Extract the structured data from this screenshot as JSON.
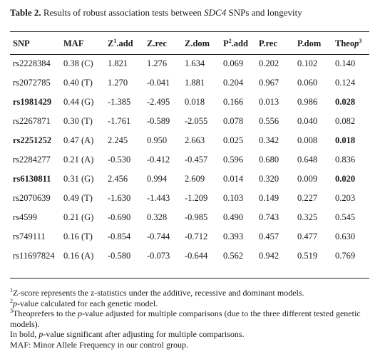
{
  "caption": {
    "label": "Table 2.",
    "text_before": " Results of robust association tests between ",
    "gene": "SDC4",
    "text_after": " SNPs and longevity"
  },
  "table": {
    "headers": {
      "snp": "SNP",
      "maf": "MAF",
      "z_add_main": "Z",
      "z_add_sup": "1",
      "z_add_rest": ".add",
      "z_rec": "Z.rec",
      "z_dom": "Z.dom",
      "p_add_main": "P",
      "p_add_sup": "2",
      "p_add_rest": ".add",
      "p_rec": "P.rec",
      "p_dom": "P.dom",
      "theo_main": "Theo",
      "theo_it": "p",
      "theo_sup": "3"
    },
    "rows": [
      {
        "snp": "rs2228384",
        "maf": "0.38 (C)",
        "z_add": "1.821",
        "z_rec": "1.276",
        "z_dom": "1.634",
        "p_add": "0.069",
        "p_rec": "0.202",
        "p_dom": "0.102",
        "theop": "0.140",
        "bold": false
      },
      {
        "snp": "rs2072785",
        "maf": "0.40 (T)",
        "z_add": "1.270",
        "z_rec": "-0.041",
        "z_dom": "1.881",
        "p_add": "0.204",
        "p_rec": "0.967",
        "p_dom": "0.060",
        "theop": "0.124",
        "bold": false
      },
      {
        "snp": "rs1981429",
        "maf": "0.44 (G)",
        "z_add": "-1.385",
        "z_rec": "-2.495",
        "z_dom": "0.018",
        "p_add": "0.166",
        "p_rec": "0.013",
        "p_dom": "0.986",
        "theop": "0.028",
        "bold": true
      },
      {
        "snp": "rs2267871",
        "maf": "0.30 (T)",
        "z_add": "-1.761",
        "z_rec": "-0.589",
        "z_dom": "-2.055",
        "p_add": "0.078",
        "p_rec": "0.556",
        "p_dom": "0.040",
        "theop": "0.082",
        "bold": false
      },
      {
        "snp": "rs2251252",
        "maf": "0.47 (A)",
        "z_add": "2.245",
        "z_rec": "0.950",
        "z_dom": "2.663",
        "p_add": "0.025",
        "p_rec": "0.342",
        "p_dom": "0.008",
        "theop": "0.018",
        "bold": true
      },
      {
        "snp": "rs2284277",
        "maf": "0.21 (A)",
        "z_add": "-0.530",
        "z_rec": "-0.412",
        "z_dom": "-0.457",
        "p_add": "0.596",
        "p_rec": "0.680",
        "p_dom": "0.648",
        "theop": "0.836",
        "bold": false
      },
      {
        "snp": "rs6130811",
        "maf": "0.31 (G)",
        "z_add": "2.456",
        "z_rec": "0.994",
        "z_dom": "2.609",
        "p_add": "0.014",
        "p_rec": "0.320",
        "p_dom": "0.009",
        "theop": "0.020",
        "bold": true
      },
      {
        "snp": "rs2070639",
        "maf": "0.49 (T)",
        "z_add": "-1.630",
        "z_rec": "-1.443",
        "z_dom": "-1.209",
        "p_add": "0.103",
        "p_rec": "0.149",
        "p_dom": "0.227",
        "theop": "0.203",
        "bold": false
      },
      {
        "snp": "rs4599",
        "maf": "0.21 (G)",
        "z_add": "-0.690",
        "z_rec": "0.328",
        "z_dom": "-0.985",
        "p_add": "0.490",
        "p_rec": "0.743",
        "p_dom": "0.325",
        "theop": "0.545",
        "bold": false
      },
      {
        "snp": "rs749111",
        "maf": "0.16 (T)",
        "z_add": "-0.854",
        "z_rec": "-0.744",
        "z_dom": "-0.712",
        "p_add": "0.393",
        "p_rec": "0.457",
        "p_dom": "0.477",
        "theop": "0.630",
        "bold": false
      },
      {
        "snp": "rs11697824",
        "maf": "0.16 (A)",
        "z_add": "-0.580",
        "z_rec": "-0.073",
        "z_dom": "-0.644",
        "p_add": "0.562",
        "p_rec": "0.942",
        "p_dom": "0.519",
        "theop": "0.769",
        "bold": false
      }
    ]
  },
  "notes": {
    "n1_sup": "1",
    "n1_text": "Z-score represents the z-statistics under the additive, recessive and dominant models.",
    "n2_sup": "2",
    "n2_it": "p",
    "n2_text": "-value calculated for each genetic model.",
    "n3_sup": "3",
    "n3_main": "Theo",
    "n3_it1": "p",
    "n3_text1": "refers to the ",
    "n3_it2": "p",
    "n3_text2": "-value adjusted for multiple comparisons (due to the three different tested genetic models).",
    "bold_note_before": "In bold, ",
    "bold_note_it": "p",
    "bold_note_after": "-value significant after adjusting for multiple comparisons.",
    "maf_note": "MAF: Minor Allele Frequency in our control group."
  }
}
